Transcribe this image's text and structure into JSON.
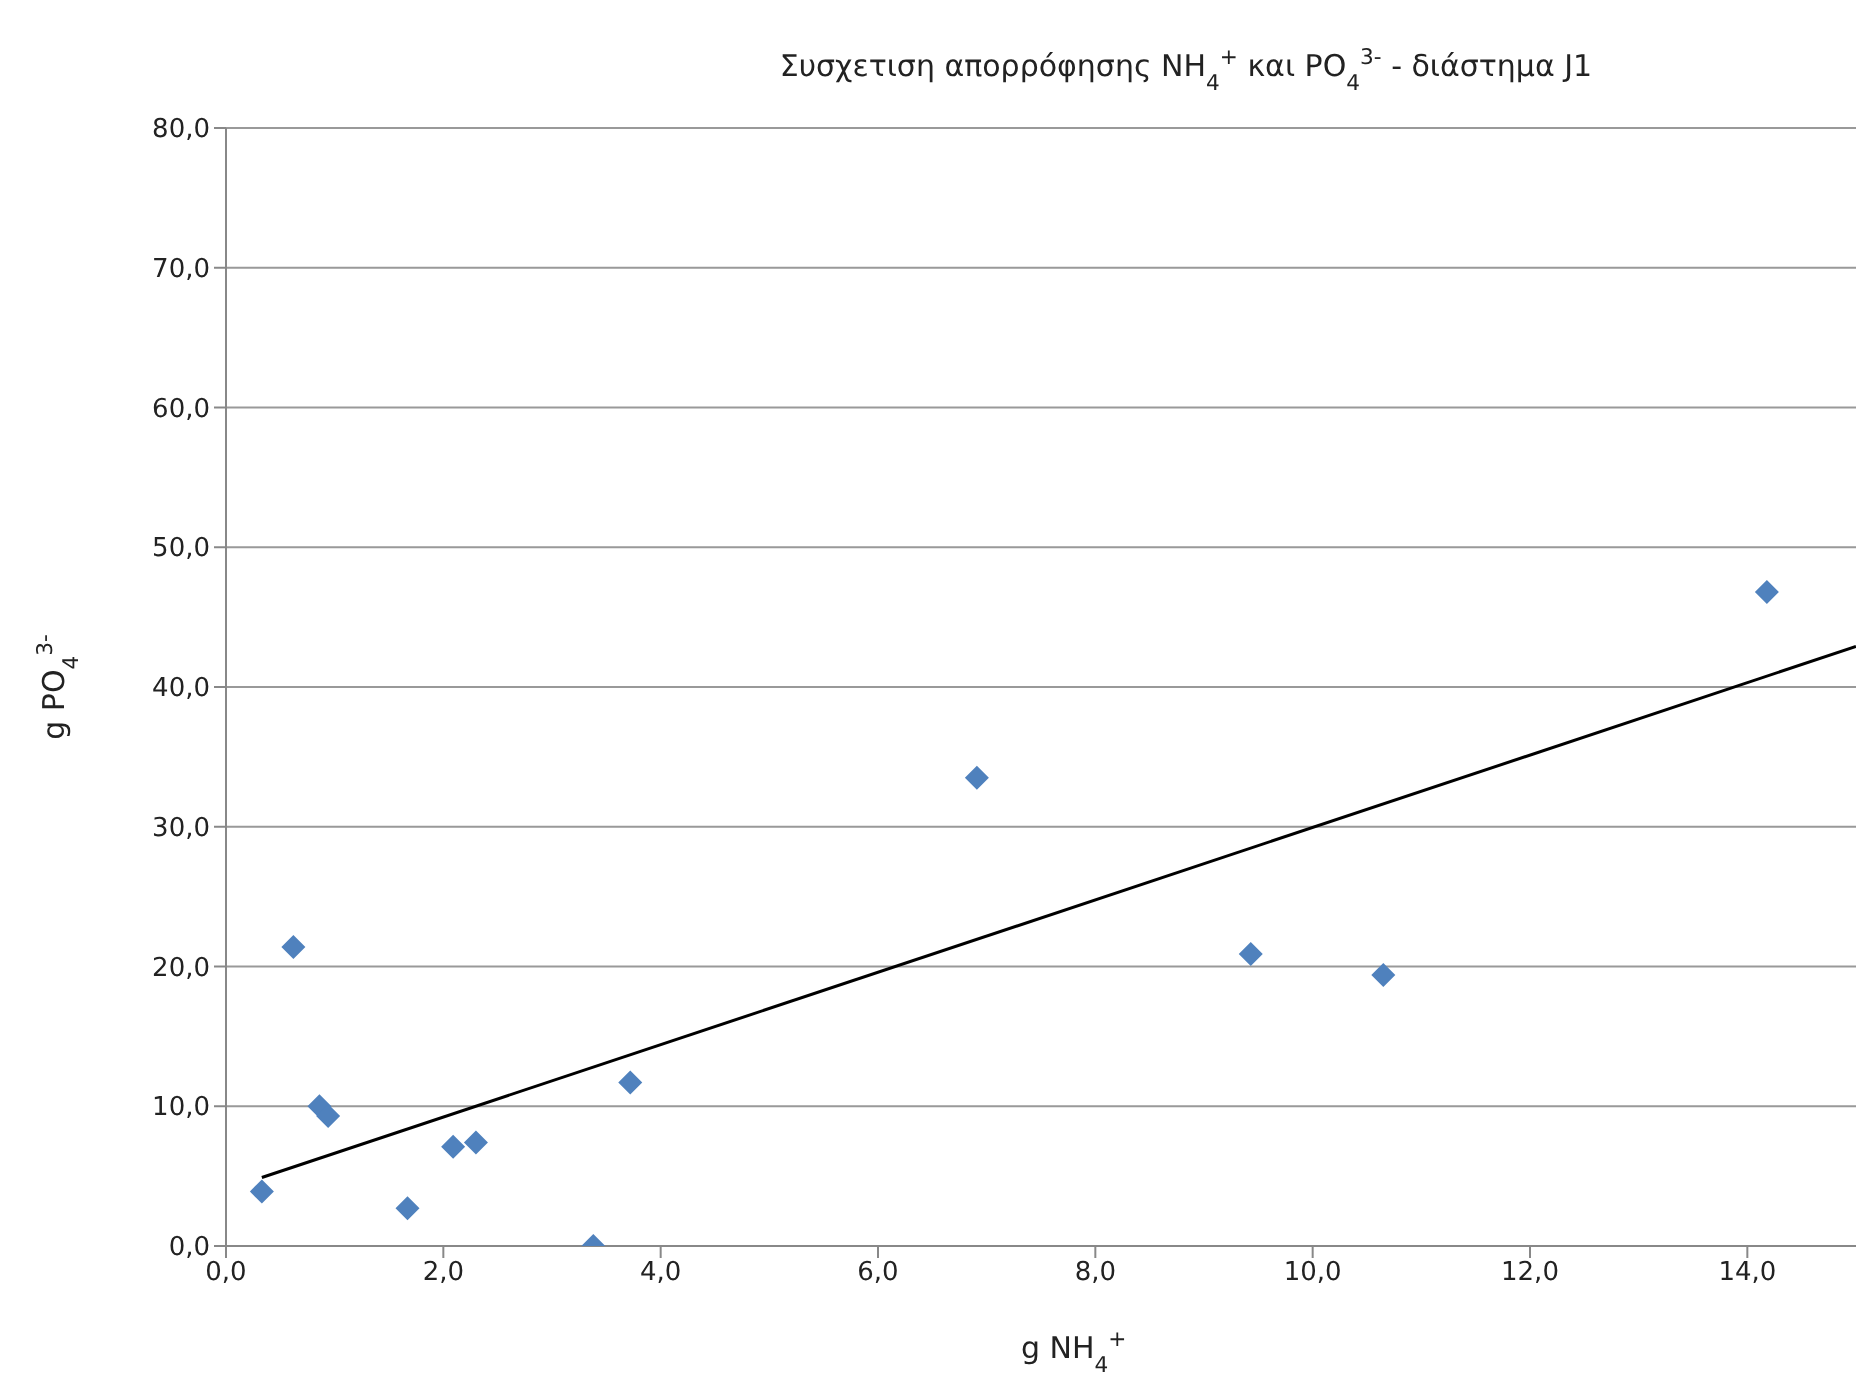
{
  "chart_data": {
    "type": "scatter",
    "title": "Συσχετιση  απορρόφησης NH$_{4}$$^{+}$ και PO$_{4}$$^{3-}$ - διάστημα J1",
    "xlabel": "g NH$_{4}$$^{+}$",
    "ylabel": "g PO$_{4}$$^{3-}$",
    "series": [
      {
        "color": "#4f81bd",
        "marker": "diamond",
        "x": [
          0.33,
          0.62,
          0.86,
          0.94,
          1.67,
          2.09,
          2.3,
          3.38,
          3.72,
          6.91,
          9.43,
          10.65,
          14.18
        ],
        "values": [
          3.9,
          21.4,
          10.0,
          9.3,
          2.7,
          7.1,
          7.4,
          0.0,
          11.7,
          33.5,
          20.9,
          19.4,
          46.8
        ]
      },
      {
        "type": "line",
        "color": "#000000",
        "marker": "none",
        "line_style": "solid",
        "x": [
          0.33,
          15
        ],
        "values": [
          4.9,
          42.9
        ]
      }
    ],
    "xlim": [
      0,
      15
    ],
    "xticks": [
      {
        "value": 0,
        "label": "0,0"
      },
      {
        "value": 2,
        "label": "2,0"
      },
      {
        "value": 4,
        "label": "4,0"
      },
      {
        "value": 6,
        "label": "6,0"
      },
      {
        "value": 8,
        "label": "8,0"
      },
      {
        "value": 10,
        "label": "10,0"
      },
      {
        "value": 12,
        "label": "12,0"
      },
      {
        "value": 14,
        "label": "14,0"
      }
    ],
    "ylim": [
      0,
      80
    ],
    "yticks": [
      {
        "value": 0,
        "label": "0,0"
      },
      {
        "value": 10,
        "label": "10,0"
      },
      {
        "value": 20,
        "label": "20,0"
      },
      {
        "value": 30,
        "label": "30,0"
      },
      {
        "value": 40,
        "label": "40,0"
      },
      {
        "value": 50,
        "label": "50,0"
      },
      {
        "value": 60,
        "label": "60,0"
      },
      {
        "value": 70,
        "label": "70,0"
      },
      {
        "value": 80,
        "label": "80,0"
      }
    ],
    "grid": "y"
  }
}
